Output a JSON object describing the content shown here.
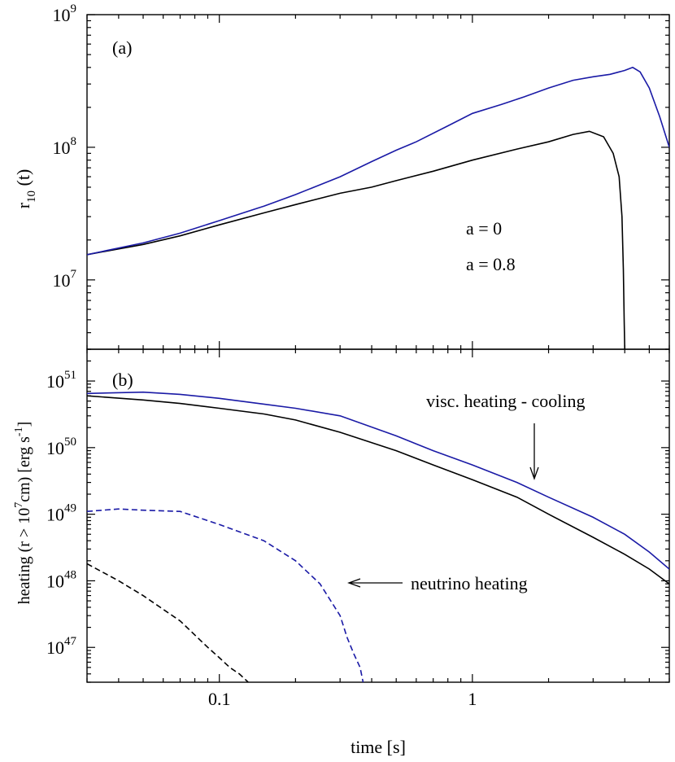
{
  "chart_data": [
    {
      "type": "line",
      "panel_label": "(a)",
      "xlabel": "time [s]",
      "ylabel_main": "r",
      "ylabel_sub": "10",
      "ylabel_tail": " (t)",
      "xscale": "log",
      "yscale": "log",
      "xlim": [
        0.03,
        6.0
      ],
      "ylim": [
        3000000,
        1000000000
      ],
      "ytick_labels": [
        {
          "base": "10",
          "exp": "7",
          "value": 10000000
        },
        {
          "base": "10",
          "exp": "8",
          "value": 100000000
        },
        {
          "base": "10",
          "exp": "9",
          "value": 1000000000
        }
      ],
      "legend": [
        {
          "text": "a = 0",
          "color": "#000000"
        },
        {
          "text": "a = 0.8",
          "color": "#1a1aa6"
        }
      ],
      "series": [
        {
          "name": "a = 0",
          "color": "#000000",
          "dash": "solid",
          "x": [
            0.03,
            0.05,
            0.07,
            0.1,
            0.15,
            0.2,
            0.3,
            0.4,
            0.5,
            0.7,
            1.0,
            1.5,
            2.0,
            2.5,
            2.9,
            3.3,
            3.6,
            3.8,
            3.9,
            3.95,
            3.98,
            4.0
          ],
          "y": [
            15500000,
            18500000,
            21500000,
            26000000,
            32000000,
            37000000,
            45000000,
            50000000,
            56000000,
            66000000,
            80000000,
            97000000,
            110000000,
            125000000,
            132000000,
            120000000,
            90000000,
            60000000,
            30000000,
            12000000,
            5000000,
            3000000
          ]
        },
        {
          "name": "a = 0.8",
          "color": "#1a1aa6",
          "dash": "solid",
          "x": [
            0.03,
            0.05,
            0.07,
            0.1,
            0.15,
            0.2,
            0.3,
            0.4,
            0.5,
            0.6,
            0.8,
            1.0,
            1.3,
            1.6,
            2.0,
            2.5,
            3.0,
            3.5,
            4.0,
            4.3,
            4.6,
            5.0,
            5.5,
            6.0
          ],
          "y": [
            15500000,
            19000000,
            22500000,
            28000000,
            36000000,
            44000000,
            60000000,
            78000000,
            95000000,
            110000000,
            145000000,
            180000000,
            210000000,
            240000000,
            280000000,
            320000000,
            340000000,
            355000000,
            380000000,
            400000000,
            370000000,
            280000000,
            170000000,
            100000000
          ]
        }
      ]
    },
    {
      "type": "line",
      "panel_label": "(b)",
      "xlabel": "time [s]",
      "ylabel_main": "heating (r > 10",
      "ylabel_exp1": "7",
      "ylabel_mid": "cm)  [erg s",
      "ylabel_exp2": "-1",
      "ylabel_tail": "]",
      "xscale": "log",
      "yscale": "log",
      "xlim": [
        0.03,
        6.0
      ],
      "ylim": [
        3e+46,
        3e+51
      ],
      "xtick_labels": [
        {
          "text": "0.1",
          "value": 0.1
        },
        {
          "text": "1",
          "value": 1
        }
      ],
      "ytick_labels": [
        {
          "base": "10",
          "exp": "47",
          "value": 1e+47
        },
        {
          "base": "10",
          "exp": "48",
          "value": 1e+48
        },
        {
          "base": "10",
          "exp": "49",
          "value": 1e+49
        },
        {
          "base": "10",
          "exp": "50",
          "value": 1e+50
        },
        {
          "base": "10",
          "exp": "51",
          "value": 1e+51
        }
      ],
      "annotations": [
        {
          "text": "visc. heating - cooling",
          "points_to": "solid curves"
        },
        {
          "text": "neutrino heating",
          "points_to": "dashed curves"
        }
      ],
      "series": [
        {
          "name": "a = 0 visc. heating - cooling",
          "color": "#000000",
          "dash": "solid",
          "x": [
            0.03,
            0.05,
            0.07,
            0.1,
            0.15,
            0.2,
            0.3,
            0.5,
            0.7,
            1.0,
            1.5,
            2.0,
            3.0,
            4.0,
            5.0,
            6.0
          ],
          "y": [
            6e+50,
            5.2e+50,
            4.6e+50,
            3.9e+50,
            3.2e+50,
            2.6e+50,
            1.7e+50,
            9e+49,
            5.5e+49,
            3.3e+49,
            1.8e+49,
            1e+49,
            4.5e+48,
            2.5e+48,
            1.5e+48,
            9e+47
          ]
        },
        {
          "name": "a = 0.8 visc. heating - cooling",
          "color": "#1a1aa6",
          "dash": "solid",
          "x": [
            0.03,
            0.05,
            0.07,
            0.1,
            0.15,
            0.2,
            0.3,
            0.5,
            0.7,
            1.0,
            1.5,
            2.0,
            3.0,
            4.0,
            5.0,
            6.0
          ],
          "y": [
            6.5e+50,
            6.8e+50,
            6.3e+50,
            5.5e+50,
            4.5e+50,
            3.9e+50,
            3e+50,
            1.5e+50,
            9e+49,
            5.5e+49,
            3e+49,
            1.8e+49,
            9e+48,
            5e+48,
            2.7e+48,
            1.5e+48
          ]
        },
        {
          "name": "a = 0 neutrino heating",
          "color": "#000000",
          "dash": "dashed",
          "x": [
            0.03,
            0.04,
            0.05,
            0.07,
            0.09,
            0.1,
            0.11,
            0.12,
            0.13
          ],
          "y": [
            1.8e+48,
            1e+48,
            6e+47,
            2.5e+47,
            1e+47,
            7e+46,
            5e+46,
            4e+46,
            3e+46
          ]
        },
        {
          "name": "a = 0.8 neutrino heating",
          "color": "#1a1aa6",
          "dash": "dashed",
          "x": [
            0.03,
            0.04,
            0.05,
            0.07,
            0.1,
            0.15,
            0.2,
            0.25,
            0.3,
            0.32,
            0.34,
            0.36,
            0.37
          ],
          "y": [
            1.1e+49,
            1.2e+49,
            1.15e+49,
            1.1e+49,
            7e+48,
            4e+48,
            2e+48,
            9e+47,
            3e+47,
            1.4e+47,
            8e+46,
            5e+46,
            3e+46
          ]
        }
      ]
    }
  ]
}
